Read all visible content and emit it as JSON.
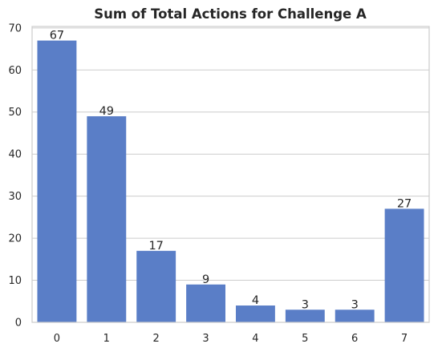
{
  "chart_data": {
    "type": "bar",
    "title": "Sum of Total Actions for Challenge A",
    "xlabel": "",
    "ylabel": "",
    "categories": [
      "0",
      "1",
      "2",
      "3",
      "4",
      "5",
      "6",
      "7"
    ],
    "values": [
      67,
      49,
      17,
      9,
      4,
      3,
      3,
      27
    ],
    "data_labels": [
      "67",
      "49",
      "17",
      "9",
      "4",
      "3",
      "3",
      "27"
    ],
    "ylim": [
      0,
      70.35
    ],
    "yticks": [
      0,
      10,
      20,
      30,
      40,
      50,
      60,
      70
    ],
    "ytick_labels": [
      "0",
      "10",
      "20",
      "30",
      "40",
      "50",
      "60",
      "70"
    ],
    "grid": "horizontal",
    "bar_color": "#5a7ec7",
    "grid_color": "#cccccc",
    "spine_color": "#cccccc",
    "text_color": "#262626"
  }
}
